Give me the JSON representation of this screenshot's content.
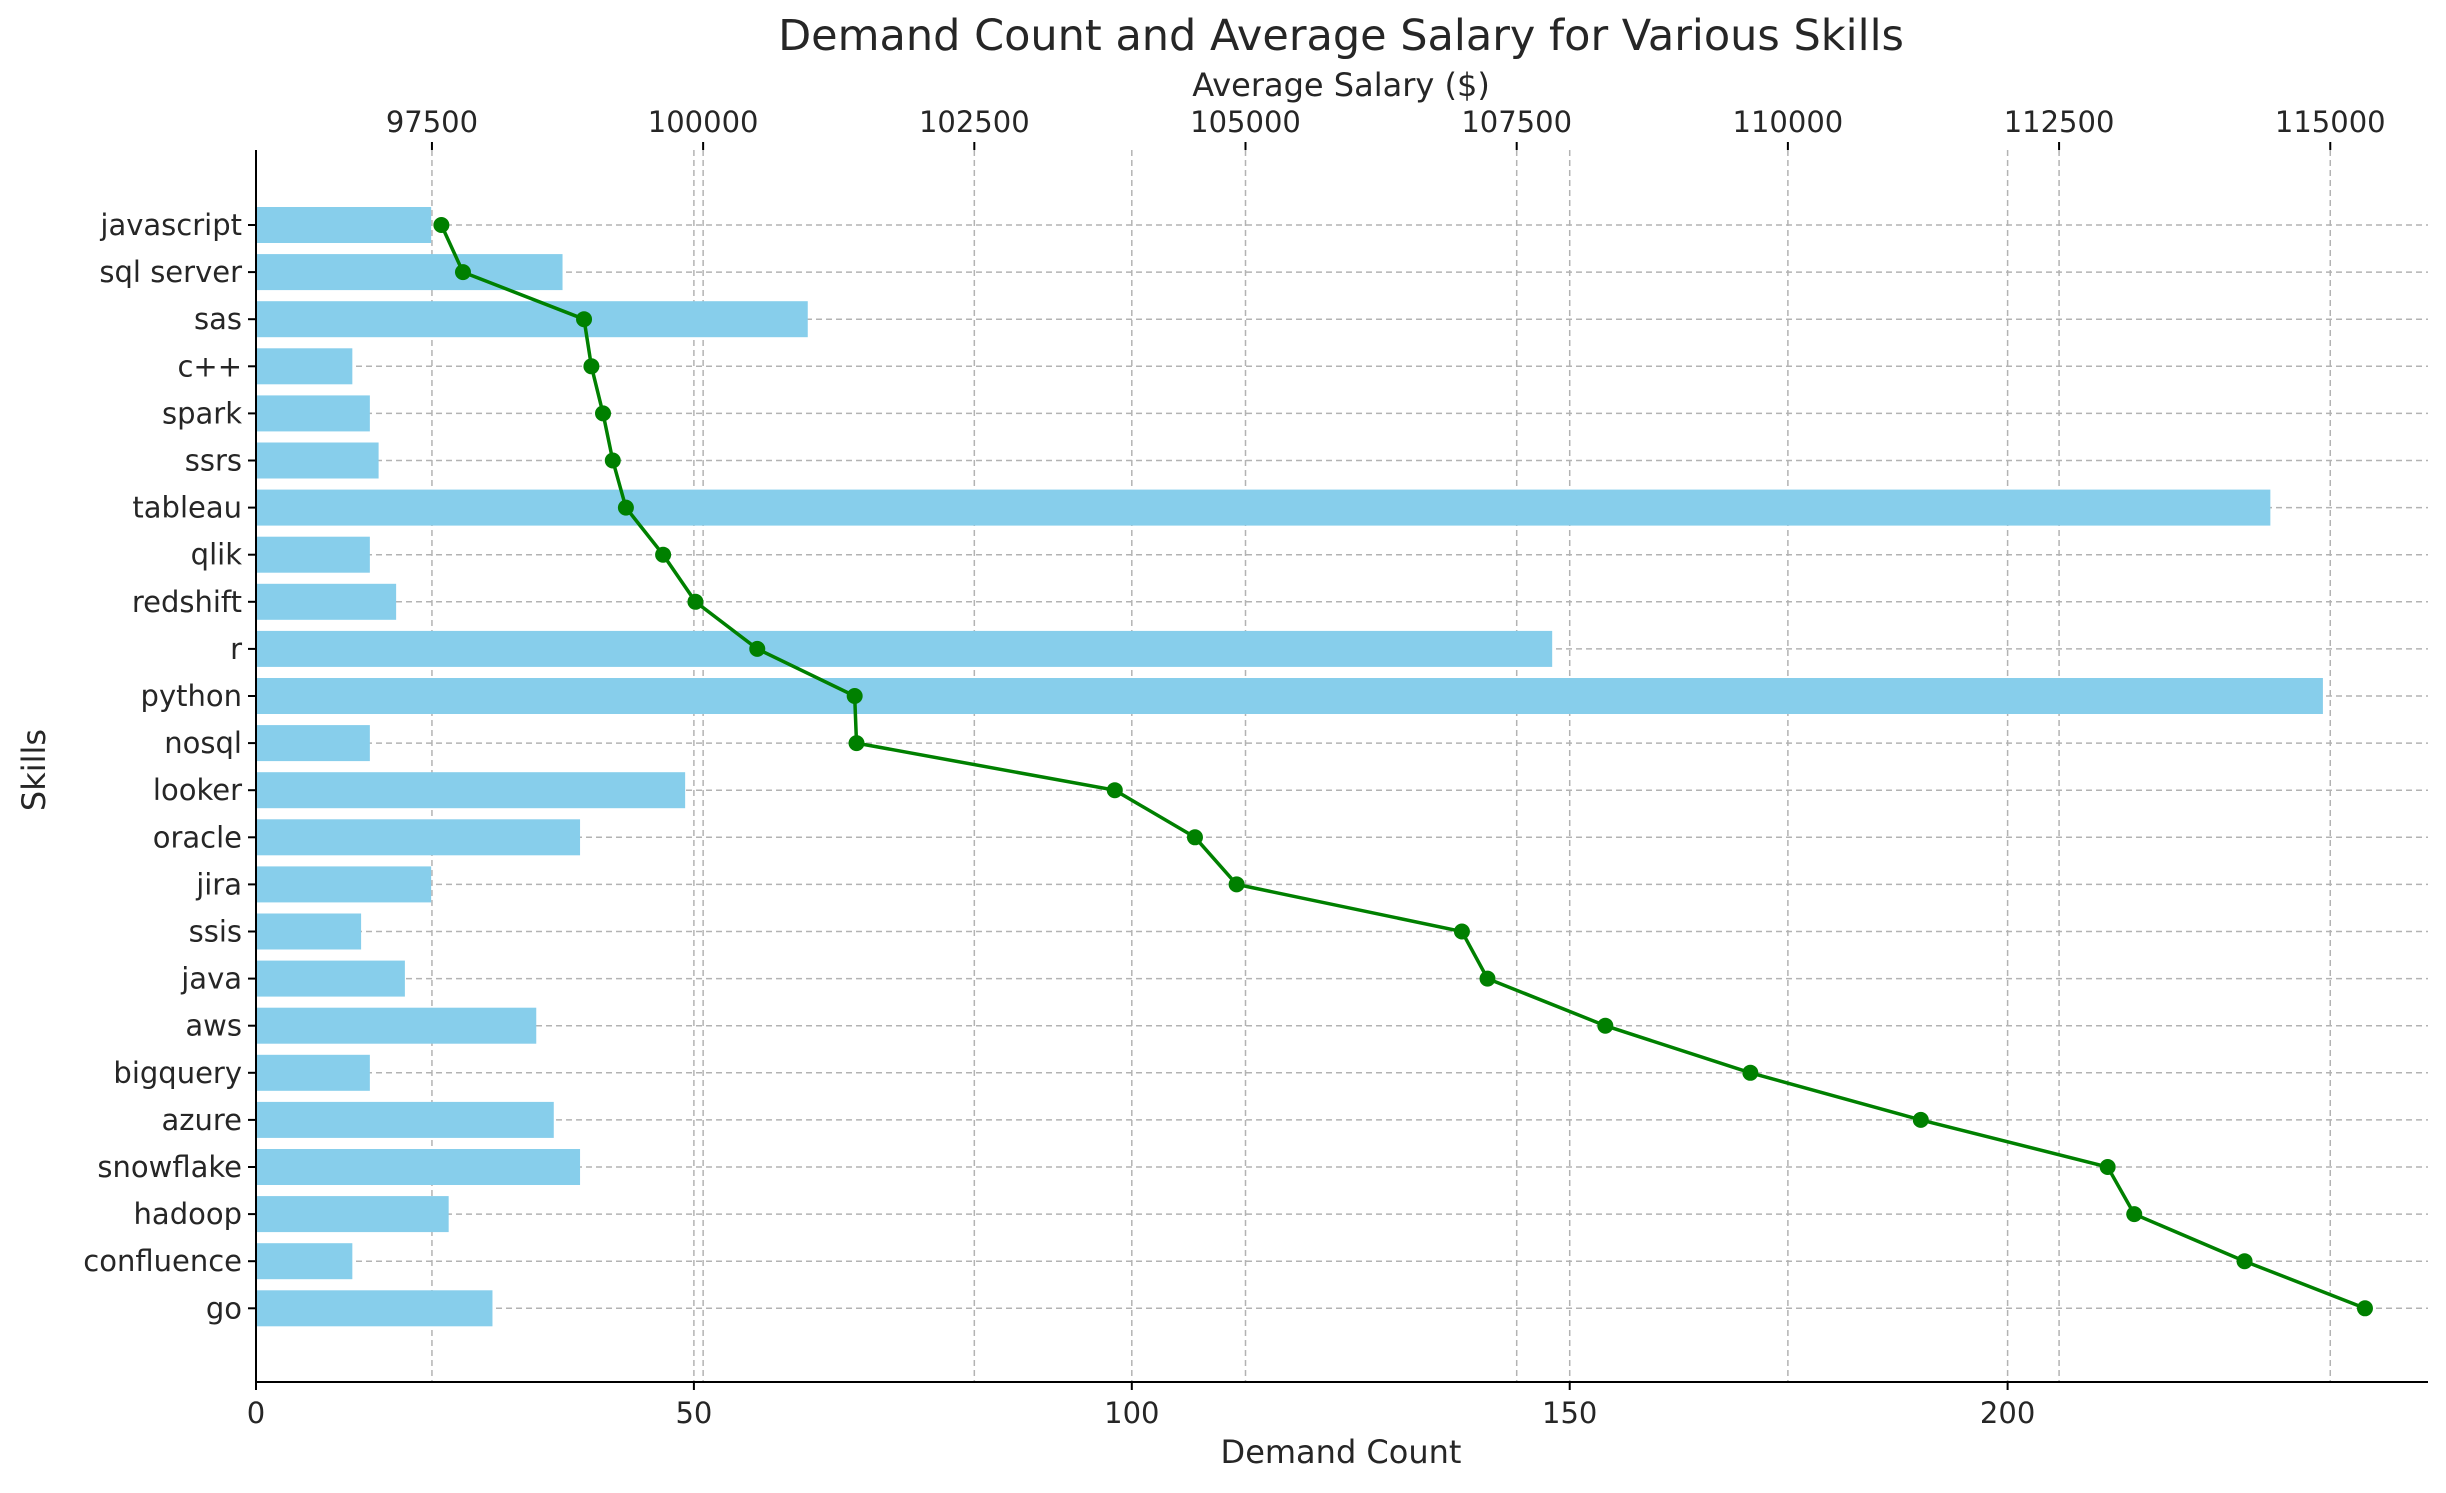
{
  "chart_data": {
    "type": "bar",
    "orientation": "horizontal",
    "title": "Demand Count and Average Salary for Various Skills",
    "ylabel": "Skills",
    "xlabel_bottom": "Demand Count",
    "xlabel_top": "Average Salary ($)",
    "categories": [
      "javascript",
      "sql server",
      "sas",
      "c++",
      "spark",
      "ssrs",
      "tableau",
      "qlik",
      "redshift",
      "r",
      "python",
      "nosql",
      "looker",
      "oracle",
      "jira",
      "ssis",
      "java",
      "aws",
      "bigquery",
      "azure",
      "snowflake",
      "hadoop",
      "confluence",
      "go"
    ],
    "series": [
      {
        "name": "Demand Count",
        "type": "bar",
        "axis": "bottom",
        "color": "#87ceeb",
        "values": [
          20,
          35,
          63,
          11,
          13,
          14,
          230,
          13,
          16,
          148,
          236,
          13,
          49,
          37,
          20,
          12,
          17,
          32,
          13,
          34,
          37,
          22,
          11,
          27
        ]
      },
      {
        "name": "Average Salary",
        "type": "line",
        "axis": "top",
        "color": "#008000",
        "marker": "circle",
        "values": [
          97587,
          97786,
          98902,
          98970,
          99077,
          99167,
          99288,
          99631,
          99929,
          100499,
          101397,
          101414,
          103795,
          104534,
          104918,
          106995,
          107231,
          108317,
          109654,
          111225,
          112948,
          113193,
          114210,
          115320
        ]
      }
    ],
    "xlim_bottom": [
      0,
      248
    ],
    "xticks_bottom": [
      "0",
      "50",
      "100",
      "150",
      "200"
    ],
    "xlim_top": [
      95878,
      115901
    ],
    "xticks_top": [
      "97500",
      "100000",
      "102500",
      "105000",
      "107500",
      "110000",
      "112500",
      "115000"
    ],
    "grid": true,
    "legend": "none"
  }
}
